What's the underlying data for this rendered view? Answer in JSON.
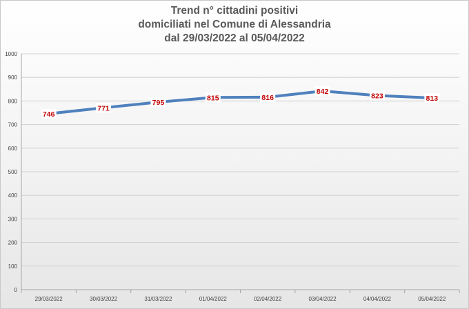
{
  "chart_data": {
    "type": "line",
    "title_lines": [
      "Trend n° cittadini positivi",
      "domiciliati nel Comune di Alessandria",
      "dal 29/03/2022 al 05/04/2022"
    ],
    "categories": [
      "29/03/2022",
      "30/03/2022",
      "31/03/2022",
      "01/04/2022",
      "02/04/2022",
      "03/04/2022",
      "04/04/2022",
      "05/04/2022"
    ],
    "series": [
      {
        "values": [
          746,
          771,
          795,
          815,
          816,
          842,
          823,
          813
        ],
        "color": "#4f81bd"
      }
    ],
    "ylim": [
      0,
      1000
    ],
    "yticks": [
      0,
      100,
      200,
      300,
      400,
      500,
      600,
      700,
      800,
      900,
      1000
    ],
    "data_label_color": "#c00000",
    "grid": true,
    "xlabel": "",
    "ylabel": ""
  }
}
